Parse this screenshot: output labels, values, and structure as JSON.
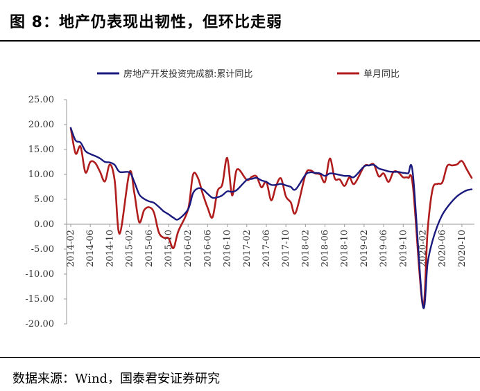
{
  "figure": {
    "title": "图 8：地产仍表现出韧性，但环比走弱",
    "source": "数据来源：Wind，国泰君安证券研究"
  },
  "chart_data": {
    "type": "line",
    "title": "",
    "xlabel": "",
    "ylabel": "",
    "ylim": [
      -20,
      25
    ],
    "yticks": [
      "25.00",
      "20.00",
      "15.00",
      "10.00",
      "5.00",
      "0.00",
      "-5.00",
      "-10.00",
      "-15.00",
      "-20.00"
    ],
    "x_start": "2014-02",
    "x_end": "2020-12",
    "xticks": [
      "2014-02",
      "2014-06",
      "2014-10",
      "2015-02",
      "2015-06",
      "2015-10",
      "2016-02",
      "2016-06",
      "2016-10",
      "2017-02",
      "2017-06",
      "2017-10",
      "2018-02",
      "2018-06",
      "2018-10",
      "2019-02",
      "2019-06",
      "2019-10",
      "2020-02",
      "2020-06",
      "2020-10"
    ],
    "legend": "top",
    "series": [
      {
        "name": "房地产开发投资完成额:累计同比",
        "color": "#1a1a7e",
        "points": [
          [
            "2014-02",
            19.3
          ],
          [
            "2014-03",
            16.8
          ],
          [
            "2014-04",
            16.4
          ],
          [
            "2014-05",
            14.7
          ],
          [
            "2014-06",
            14.1
          ],
          [
            "2014-07",
            13.7
          ],
          [
            "2014-08",
            13.2
          ],
          [
            "2014-09",
            12.5
          ],
          [
            "2014-10",
            12.4
          ],
          [
            "2014-11",
            11.9
          ],
          [
            "2014-12",
            10.5
          ],
          [
            "2015-02",
            10.4
          ],
          [
            "2015-03",
            8.5
          ],
          [
            "2015-04",
            6.0
          ],
          [
            "2015-05",
            5.1
          ],
          [
            "2015-06",
            4.6
          ],
          [
            "2015-07",
            4.3
          ],
          [
            "2015-08",
            3.5
          ],
          [
            "2015-09",
            2.6
          ],
          [
            "2015-10",
            2.0
          ],
          [
            "2015-11",
            1.3
          ],
          [
            "2015-12",
            1.0
          ],
          [
            "2016-02",
            3.0
          ],
          [
            "2016-03",
            6.2
          ],
          [
            "2016-04",
            7.2
          ],
          [
            "2016-05",
            7.0
          ],
          [
            "2016-06",
            6.1
          ],
          [
            "2016-07",
            5.3
          ],
          [
            "2016-08",
            5.4
          ],
          [
            "2016-09",
            5.8
          ],
          [
            "2016-10",
            6.6
          ],
          [
            "2016-11",
            6.5
          ],
          [
            "2016-12",
            6.9
          ],
          [
            "2017-02",
            8.9
          ],
          [
            "2017-03",
            9.1
          ],
          [
            "2017-04",
            9.3
          ],
          [
            "2017-05",
            8.8
          ],
          [
            "2017-06",
            8.5
          ],
          [
            "2017-07",
            7.9
          ],
          [
            "2017-08",
            7.9
          ],
          [
            "2017-09",
            8.1
          ],
          [
            "2017-10",
            7.8
          ],
          [
            "2017-11",
            7.5
          ],
          [
            "2017-12",
            7.0
          ],
          [
            "2018-02",
            9.9
          ],
          [
            "2018-03",
            10.4
          ],
          [
            "2018-04",
            10.3
          ],
          [
            "2018-05",
            10.2
          ],
          [
            "2018-06",
            9.7
          ],
          [
            "2018-07",
            10.2
          ],
          [
            "2018-08",
            10.1
          ],
          [
            "2018-09",
            9.9
          ],
          [
            "2018-10",
            9.7
          ],
          [
            "2018-11",
            9.7
          ],
          [
            "2018-12",
            9.5
          ],
          [
            "2019-02",
            11.6
          ],
          [
            "2019-03",
            11.8
          ],
          [
            "2019-04",
            11.9
          ],
          [
            "2019-05",
            11.2
          ],
          [
            "2019-06",
            10.9
          ],
          [
            "2019-07",
            10.6
          ],
          [
            "2019-08",
            10.5
          ],
          [
            "2019-09",
            10.5
          ],
          [
            "2019-10",
            10.3
          ],
          [
            "2019-11",
            10.2
          ],
          [
            "2019-12",
            9.9
          ],
          [
            "2020-02",
            -16.3
          ],
          [
            "2020-03",
            -7.7
          ],
          [
            "2020-04",
            -3.3
          ],
          [
            "2020-05",
            -0.3
          ],
          [
            "2020-06",
            1.9
          ],
          [
            "2020-07",
            3.4
          ],
          [
            "2020-08",
            4.6
          ],
          [
            "2020-09",
            5.6
          ],
          [
            "2020-10",
            6.3
          ],
          [
            "2020-11",
            6.8
          ],
          [
            "2020-12",
            7.0
          ]
        ]
      },
      {
        "name": "单月同比",
        "color": "#b01c1c",
        "points": [
          [
            "2014-02",
            19.3
          ],
          [
            "2014-03",
            14.2
          ],
          [
            "2014-04",
            15.6
          ],
          [
            "2014-05",
            10.4
          ],
          [
            "2014-06",
            12.5
          ],
          [
            "2014-07",
            12.3
          ],
          [
            "2014-08",
            10.5
          ],
          [
            "2014-09",
            8.6
          ],
          [
            "2014-10",
            12.0
          ],
          [
            "2014-11",
            8.7
          ],
          [
            "2014-12",
            -1.9
          ],
          [
            "2015-02",
            10.4
          ],
          [
            "2015-03",
            6.3
          ],
          [
            "2015-04",
            0.4
          ],
          [
            "2015-05",
            2.8
          ],
          [
            "2015-06",
            3.4
          ],
          [
            "2015-07",
            2.4
          ],
          [
            "2015-08",
            -1.6
          ],
          [
            "2015-09",
            -2.7
          ],
          [
            "2015-10",
            -2.8
          ],
          [
            "2015-11",
            -4.8
          ],
          [
            "2015-12",
            -1.4
          ],
          [
            "2016-02",
            3.0
          ],
          [
            "2016-03",
            9.9
          ],
          [
            "2016-04",
            9.3
          ],
          [
            "2016-05",
            6.1
          ],
          [
            "2016-06",
            3.3
          ],
          [
            "2016-07",
            1.4
          ],
          [
            "2016-08",
            6.6
          ],
          [
            "2016-09",
            8.0
          ],
          [
            "2016-10",
            13.3
          ],
          [
            "2016-11",
            5.8
          ],
          [
            "2016-12",
            11.0
          ],
          [
            "2017-02",
            8.9
          ],
          [
            "2017-03",
            9.5
          ],
          [
            "2017-04",
            9.6
          ],
          [
            "2017-05",
            7.4
          ],
          [
            "2017-06",
            8.5
          ],
          [
            "2017-07",
            4.8
          ],
          [
            "2017-08",
            7.7
          ],
          [
            "2017-09",
            9.2
          ],
          [
            "2017-10",
            5.6
          ],
          [
            "2017-11",
            4.4
          ],
          [
            "2017-12",
            2.3
          ],
          [
            "2018-02",
            9.9
          ],
          [
            "2018-03",
            10.8
          ],
          [
            "2018-04",
            10.2
          ],
          [
            "2018-05",
            10.0
          ],
          [
            "2018-06",
            8.5
          ],
          [
            "2018-07",
            13.2
          ],
          [
            "2018-08",
            9.2
          ],
          [
            "2018-09",
            9.0
          ],
          [
            "2018-10",
            7.7
          ],
          [
            "2018-11",
            9.4
          ],
          [
            "2018-12",
            8.1
          ],
          [
            "2019-02",
            11.6
          ],
          [
            "2019-03",
            11.8
          ],
          [
            "2019-04",
            12.0
          ],
          [
            "2019-05",
            9.6
          ],
          [
            "2019-06",
            10.2
          ],
          [
            "2019-07",
            8.5
          ],
          [
            "2019-08",
            10.5
          ],
          [
            "2019-09",
            10.4
          ],
          [
            "2019-10",
            9.4
          ],
          [
            "2019-11",
            9.3
          ],
          [
            "2019-12",
            7.5
          ],
          [
            "2020-02",
            -16.3
          ],
          [
            "2020-03",
            -1.1
          ],
          [
            "2020-04",
            7.0
          ],
          [
            "2020-05",
            8.1
          ],
          [
            "2020-06",
            8.4
          ],
          [
            "2020-07",
            11.7
          ],
          [
            "2020-08",
            11.8
          ],
          [
            "2020-09",
            12.0
          ],
          [
            "2020-10",
            12.7
          ],
          [
            "2020-11",
            11.0
          ],
          [
            "2020-12",
            9.3
          ]
        ]
      }
    ]
  }
}
